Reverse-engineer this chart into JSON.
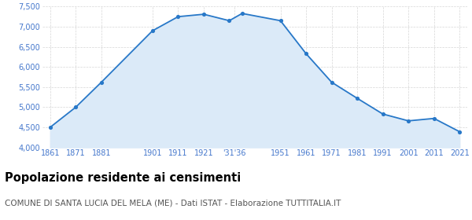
{
  "years": [
    1861,
    1871,
    1881,
    1901,
    1911,
    1921,
    1931,
    1936,
    1951,
    1961,
    1971,
    1981,
    1991,
    2001,
    2011,
    2021
  ],
  "population": [
    4500,
    5000,
    5620,
    6900,
    7250,
    7310,
    7150,
    7330,
    7150,
    6330,
    5620,
    5220,
    4830,
    4660,
    4720,
    4390
  ],
  "line_color": "#2878c8",
  "fill_color": "#dbeaf8",
  "marker_color": "#2878c8",
  "background_color": "#ffffff",
  "grid_color": "#cccccc",
  "ylim": [
    4000,
    7500
  ],
  "yticks": [
    4000,
    4500,
    5000,
    5500,
    6000,
    6500,
    7000,
    7500
  ],
  "title": "Popolazione residente ai censimenti",
  "subtitle": "COMUNE DI SANTA LUCIA DEL MELA (ME) - Dati ISTAT - Elaborazione TUTTITALIA.IT",
  "title_fontsize": 10.5,
  "subtitle_fontsize": 7.5,
  "title_color": "#000000",
  "subtitle_color": "#555555",
  "axis_label_color": "#4477cc",
  "tick_fontsize": 7
}
